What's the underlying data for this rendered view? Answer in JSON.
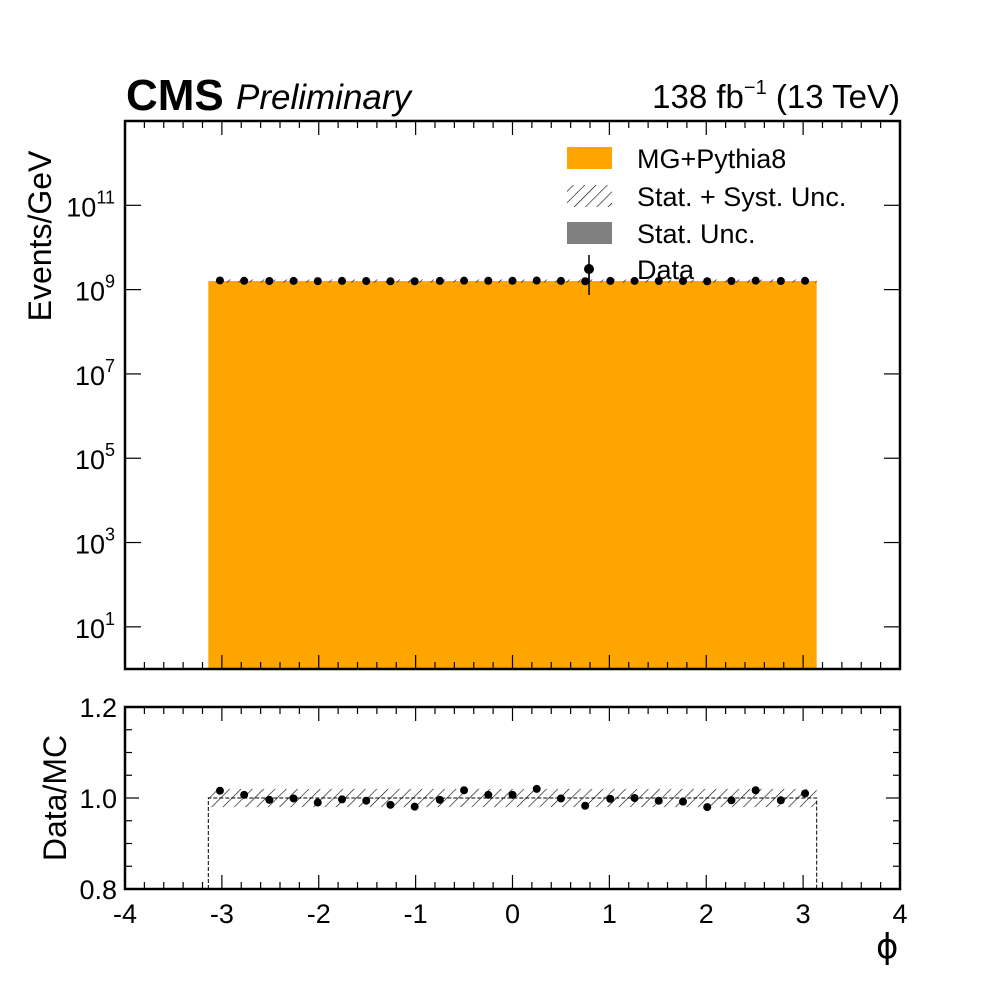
{
  "header": {
    "experiment": "CMS",
    "status": "Preliminary",
    "lumi_value": "138 fb",
    "lumi_exp": "−1",
    "energy": "(13 TeV)"
  },
  "chart_data": [
    {
      "type": "bar",
      "panel": "main",
      "ylabel": "Events/GeV",
      "yscale": "log",
      "ylim": [
        1,
        10000000000000.0
      ],
      "xlim": [
        -4,
        4
      ],
      "ytick_labels": [
        {
          "base": "10",
          "exp": "1",
          "value": 10
        },
        {
          "base": "10",
          "exp": "3",
          "value": 1000
        },
        {
          "base": "10",
          "exp": "5",
          "value": 100000
        },
        {
          "base": "10",
          "exp": "7",
          "value": 10000000
        },
        {
          "base": "10",
          "exp": "9",
          "value": 1000000000
        },
        {
          "base": "10",
          "exp": "11",
          "value": 100000000000
        }
      ],
      "series": [
        {
          "name": "MG+Pythia8",
          "kind": "histogram",
          "x_range": [
            -3.14,
            3.14
          ],
          "value": 1600000000.0,
          "color": "#ffa500"
        },
        {
          "name": "Stat. + Syst. Unc.",
          "kind": "hatched-band"
        },
        {
          "name": "Stat. Unc.",
          "kind": "band",
          "color": "#808080"
        },
        {
          "name": "Data",
          "kind": "points",
          "x": [
            -3.02,
            -2.77,
            -2.51,
            -2.26,
            -2.01,
            -1.76,
            -1.51,
            -1.26,
            -1.01,
            -0.75,
            -0.5,
            -0.25,
            0.0,
            0.25,
            0.5,
            0.75,
            1.01,
            1.26,
            1.51,
            1.76,
            2.01,
            2.26,
            2.51,
            2.77,
            3.02
          ],
          "y": [
            1650000000.0,
            1620000000.0,
            1600000000.0,
            1610000000.0,
            1590000000.0,
            1610000000.0,
            1600000000.0,
            1580000000.0,
            1580000000.0,
            1610000000.0,
            1630000000.0,
            1620000000.0,
            1620000000.0,
            1640000000.0,
            1610000000.0,
            1580000000.0,
            1610000000.0,
            1610000000.0,
            1600000000.0,
            1600000000.0,
            1580000000.0,
            1600000000.0,
            1630000000.0,
            1600000000.0,
            1620000000.0
          ],
          "color": "#000000"
        }
      ],
      "legend": "top-right"
    },
    {
      "type": "scatter",
      "panel": "ratio",
      "ylabel": "Data/MC",
      "xlabel": "ϕ",
      "xlim": [
        -4,
        4
      ],
      "ylim": [
        0.8,
        1.2
      ],
      "ytick_labels": [
        "0.8",
        "1.0",
        "1.2"
      ],
      "yticks": [
        0.8,
        1.0,
        1.2
      ],
      "xtick_labels": [
        "-4",
        "-3",
        "-2",
        "-1",
        "0",
        "1",
        "2",
        "3",
        "4"
      ],
      "xticks": [
        -4,
        -3,
        -2,
        -1,
        0,
        1,
        2,
        3,
        4
      ],
      "band": {
        "x_range": [
          -3.14,
          3.14
        ],
        "low": 0.98,
        "high": 1.02
      },
      "x": [
        -3.02,
        -2.77,
        -2.51,
        -2.26,
        -2.01,
        -1.76,
        -1.51,
        -1.26,
        -1.01,
        -0.75,
        -0.5,
        -0.25,
        0.0,
        0.25,
        0.5,
        0.75,
        1.01,
        1.26,
        1.51,
        1.76,
        2.01,
        2.26,
        2.51,
        2.77,
        3.02
      ],
      "y": [
        1.016,
        1.007,
        0.996,
        0.999,
        0.99,
        0.997,
        0.994,
        0.985,
        0.981,
        0.996,
        1.017,
        1.007,
        1.007,
        1.02,
        0.999,
        0.983,
        0.998,
        1.0,
        0.994,
        0.992,
        0.98,
        0.995,
        1.017,
        0.995,
        1.01
      ]
    }
  ]
}
